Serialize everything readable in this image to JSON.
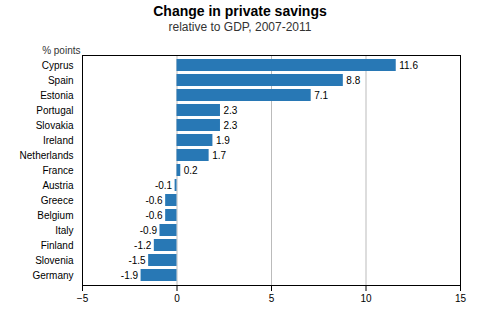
{
  "chart_data": {
    "type": "bar",
    "orientation": "horizontal",
    "title": "Change in private savings",
    "subtitle": "relative to GDP, 2007-2011",
    "xlabel": "% points",
    "categories": [
      "Cyprus",
      "Spain",
      "Estonia",
      "Portugal",
      "Slovakia",
      "Ireland",
      "Netherlands",
      "France",
      "Austria",
      "Greece",
      "Belgium",
      "Italy",
      "Finland",
      "Slovenia",
      "Germany"
    ],
    "values": [
      11.6,
      8.8,
      7.1,
      2.3,
      2.3,
      1.9,
      1.7,
      0.2,
      -0.1,
      -0.6,
      -0.6,
      -0.9,
      -1.2,
      -1.5,
      -1.9
    ],
    "color": "#2878b5",
    "xlim": [
      -5,
      15
    ],
    "xticks": [
      -5,
      0,
      5,
      10,
      15
    ],
    "grid": true,
    "data_labels": true
  }
}
